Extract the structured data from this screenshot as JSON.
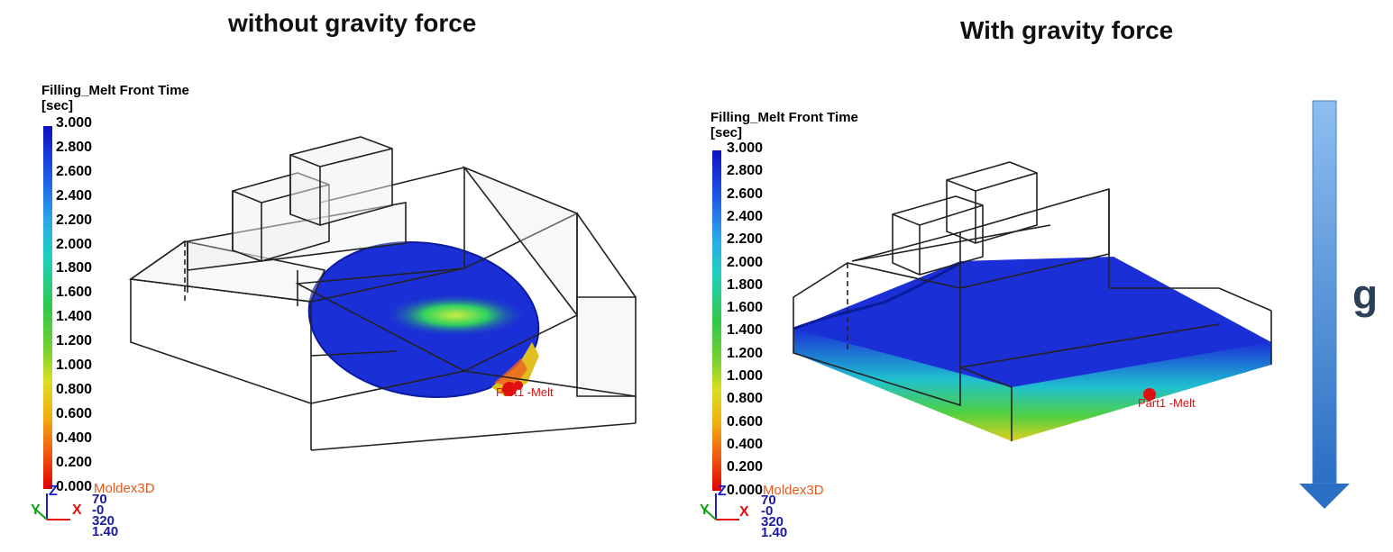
{
  "panels": [
    {
      "title": "without gravity force",
      "legend_title": "Filling_Melt Front Time",
      "legend_unit": "[sec]",
      "ticks": [
        "3.000",
        "2.800",
        "2.600",
        "2.400",
        "2.200",
        "2.000",
        "1.800",
        "1.600",
        "1.400",
        "1.200",
        "1.000",
        "0.800",
        "0.600",
        "0.400",
        "0.200",
        "0.000"
      ],
      "brand": "Moldex3D",
      "view_values": [
        "70",
        "-0",
        "320",
        "1.40"
      ],
      "axis_labels": {
        "z": "Z",
        "y": "Y",
        "x": "X"
      },
      "gate_label": "Part1 -Melt"
    },
    {
      "title": "With gravity force",
      "legend_title": "Filling_Melt Front Time",
      "legend_unit": "[sec]",
      "ticks": [
        "3.000",
        "2.800",
        "2.600",
        "2.400",
        "2.200",
        "2.000",
        "1.800",
        "1.600",
        "1.400",
        "1.200",
        "1.000",
        "0.800",
        "0.600",
        "0.400",
        "0.200",
        "0.000"
      ],
      "brand": "Moldex3D",
      "view_values": [
        "70",
        "-0",
        "320",
        "1.40"
      ],
      "axis_labels": {
        "z": "Z",
        "y": "Y",
        "x": "X"
      },
      "gate_label": "Part1 -Melt"
    }
  ],
  "gravity_label": "g",
  "colors": {
    "melt_blue": "#1a2fd6",
    "arrow_light": "#8fbef0",
    "arrow_dark": "#2a6fc4",
    "gate_red": "#e01010",
    "brand_orange": "#e05a1a"
  }
}
